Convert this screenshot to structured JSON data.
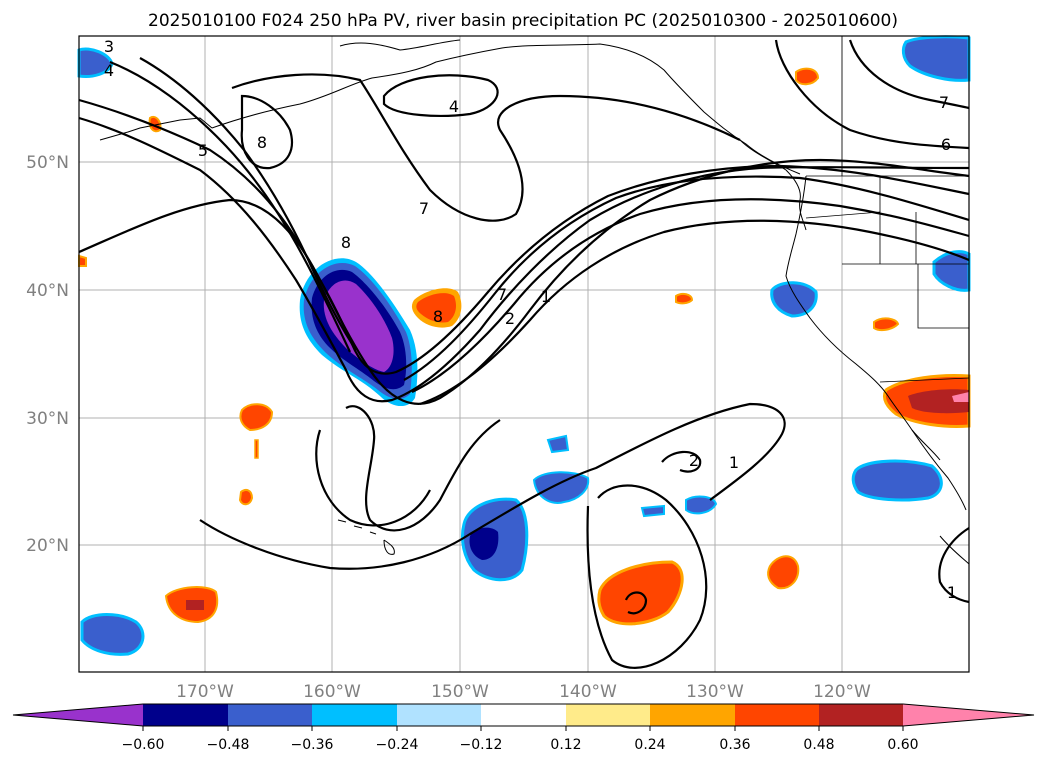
{
  "title": "2025010100 F024 250 hPa PV, river basin precipitation PC (2025010300 - 2025010600)",
  "map": {
    "lat_labels": [
      "50°N",
      "40°N",
      "30°N",
      "20°N"
    ],
    "lon_labels": [
      "170°W",
      "160°W",
      "150°W",
      "140°W",
      "130°W",
      "120°W"
    ],
    "contour_labels": [
      "3",
      "4",
      "5",
      "8",
      "4",
      "7",
      "6",
      "8",
      "7",
      "8",
      "1",
      "2",
      "7",
      "2",
      "1",
      "1"
    ]
  },
  "colorbar": {
    "tick_labels": [
      "−0.60",
      "−0.48",
      "−0.36",
      "−0.24",
      "−0.12",
      "0.12",
      "0.24",
      "0.36",
      "0.48",
      "0.60"
    ],
    "colors": [
      "#9932cc",
      "#00008b",
      "#3a5fcd",
      "#00bfff",
      "#b0e2ff",
      "#ffffff",
      "#ffeb8a",
      "#ffa500",
      "#ff4500",
      "#b22222",
      "#ff82ab"
    ]
  }
}
